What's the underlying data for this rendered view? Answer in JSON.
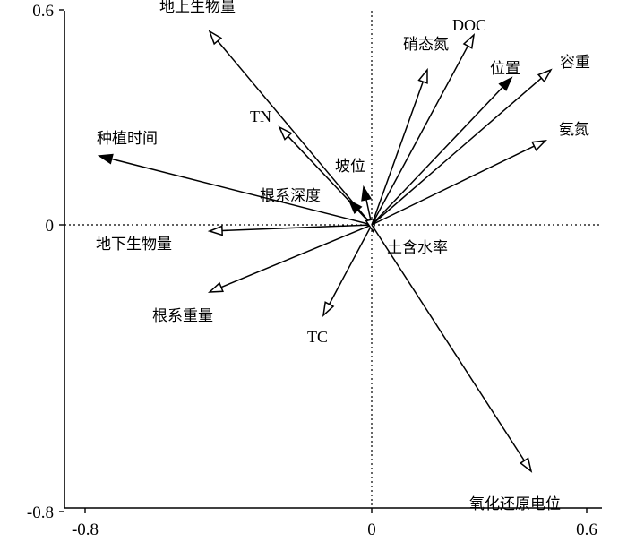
{
  "chart_data": {
    "type": "biplot",
    "title": "",
    "xlabel": "",
    "ylabel": "",
    "xlim": [
      -0.8,
      0.6
    ],
    "ylim": [
      -0.8,
      0.6
    ],
    "x_ticks": [
      {
        "value": -0.8,
        "label": "-0.8"
      },
      {
        "value": 0,
        "label": "0"
      },
      {
        "value": 0.6,
        "label": "0.6"
      }
    ],
    "y_ticks": [
      {
        "value": 0.6,
        "label": "0.6"
      },
      {
        "value": 0,
        "label": "0"
      },
      {
        "value": -0.8,
        "label": "-0.8"
      }
    ],
    "zero_lines": true,
    "vectors": [
      {
        "name": "地上生物量",
        "x": -0.4525,
        "y": 0.54,
        "head": "open"
      },
      {
        "name": "TN",
        "x": -0.2575,
        "y": 0.2725,
        "head": "open"
      },
      {
        "name": "种植时间",
        "x": -0.76,
        "y": 0.1925,
        "head": "filled"
      },
      {
        "name": "根系深度",
        "x": -0.0625,
        "y": 0.0675,
        "head": "filled"
      },
      {
        "name": "坡位",
        "x": -0.0225,
        "y": 0.105,
        "head": "filled"
      },
      {
        "name": "地下生物量",
        "x": -0.4525,
        "y": -0.0175,
        "head": "open"
      },
      {
        "name": "根系重量",
        "x": -0.4525,
        "y": -0.1875,
        "head": "open"
      },
      {
        "name": "TC",
        "x": -0.135,
        "y": -0.2525,
        "head": "open"
      },
      {
        "name": "土含水率",
        "x": 0.005,
        "y": -0.02,
        "head": "open"
      },
      {
        "name": "硝态氮",
        "x": 0.155,
        "y": 0.4325,
        "head": "open"
      },
      {
        "name": "DOC",
        "x": 0.285,
        "y": 0.53,
        "head": "open"
      },
      {
        "name": "位置",
        "x": 0.39,
        "y": 0.41,
        "head": "filled"
      },
      {
        "name": "容重",
        "x": 0.5,
        "y": 0.4325,
        "head": "open"
      },
      {
        "name": "氨氮",
        "x": 0.485,
        "y": 0.235,
        "head": "open"
      },
      {
        "name": "氧化还原电位",
        "x": 0.445,
        "y": -0.6875,
        "head": "open"
      }
    ]
  }
}
